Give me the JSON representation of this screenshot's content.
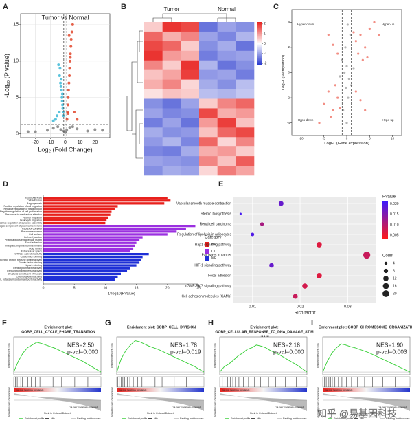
{
  "chart_data": [
    {
      "label": "A",
      "type": "scatter",
      "title": "Tumor vs Normal",
      "xlabel": "Log₂ (Fold Change)",
      "ylabel": "-Log₁₀ (P value)",
      "xlim": [
        -30,
        30
      ],
      "ylim": [
        -0.5,
        16.5
      ],
      "xticks": [
        -20,
        -10,
        0,
        10,
        20
      ],
      "yticks": [
        0,
        5,
        10,
        15
      ],
      "grid": true,
      "vlines": [
        -1,
        1
      ],
      "hlines": [
        1.3
      ],
      "series": [
        {
          "color": "#3db8d6",
          "x": [
            -4.5,
            -3.8,
            -3.2,
            -2.9,
            -2.5,
            -2.2,
            -2,
            -1.8,
            -1.6,
            -1.4,
            -1.2,
            -3.5,
            -2.7,
            -1.9,
            -4,
            -5.5,
            -6.5,
            -8
          ],
          "values": [
            9.5,
            8,
            7,
            6.5,
            6,
            5,
            4.5,
            4,
            3.5,
            3,
            2.5,
            9,
            7.5,
            5.5,
            3,
            2.5,
            2,
            1.8
          ]
        },
        {
          "color": "#e2452a",
          "x": [
            1.2,
            1.5,
            1.8,
            2,
            2.2,
            2.5,
            2.8,
            3,
            3.2,
            3.5,
            3.8,
            4,
            4.5,
            5,
            2.6,
            3.4,
            1.9,
            6,
            8
          ],
          "values": [
            2,
            3,
            4,
            5,
            6,
            7,
            8,
            9,
            10,
            11,
            12,
            13,
            14,
            15,
            13.5,
            10.5,
            2.8,
            3,
            2
          ]
        },
        {
          "color": "#808080",
          "x": [
            -20,
            -12,
            -8,
            -5,
            -3,
            -1,
            0,
            1,
            3,
            5,
            8,
            15,
            20,
            25,
            -25
          ],
          "values": [
            0.3,
            0.5,
            0.8,
            1,
            0.6,
            0.4,
            0.2,
            0.5,
            0.9,
            1,
            0.7,
            0.4,
            0.6,
            0.5,
            0.3
          ]
        }
      ]
    },
    {
      "label": "B",
      "type": "heatmap",
      "column_groups": [
        "Tumor",
        "Normal"
      ],
      "clim": [
        -2.2,
        2.2
      ],
      "cticks": [
        -2,
        -1,
        0,
        1,
        2
      ],
      "matrix": [
        [
          0.5,
          2,
          1.8,
          -1.5,
          -1,
          -1.2
        ],
        [
          1.5,
          0.8,
          1.2,
          -1,
          -1.3,
          -0.8
        ],
        [
          1.8,
          1.5,
          0.5,
          -1.2,
          -0.9,
          -1.5
        ],
        [
          2,
          1,
          0.8,
          -1.4,
          -1.1,
          -1
        ],
        [
          1.2,
          0.5,
          2,
          -0.8,
          -1.5,
          -1.2
        ],
        [
          0.6,
          0.9,
          1.9,
          -1.1,
          -1,
          -1.4
        ],
        [
          0.8,
          1.2,
          0.4,
          -0.9,
          -1.2,
          -0.7
        ],
        [
          0.3,
          0.6,
          0.5,
          -0.7,
          -0.8,
          -0.6
        ],
        [
          -1.2,
          -1.5,
          -1,
          0.5,
          1.2,
          1.5
        ],
        [
          -1,
          -1.3,
          -1.2,
          1.8,
          0.8,
          1
        ],
        [
          -1.4,
          -1,
          -1.5,
          1,
          1.9,
          0.6
        ],
        [
          -0.9,
          -1.2,
          -1.1,
          0.6,
          1.5,
          1.8
        ],
        [
          -1.1,
          -0.8,
          -1.3,
          1.5,
          0.4,
          1.2
        ],
        [
          -1.3,
          -1.4,
          -0.9,
          0.8,
          1,
          0.5
        ],
        [
          -1,
          -1.1,
          -1.2,
          1.2,
          0.6,
          1.6
        ],
        [
          -1.2,
          -0.9,
          -1,
          0.4,
          1.3,
          0.9
        ]
      ]
    },
    {
      "label": "C",
      "type": "scatter",
      "xlabel": "LogFC(Gene expression)",
      "ylabel": "LogFC(Methylation)",
      "quadrants": [
        "Hyper-down",
        "Hyper-up",
        "Hypo-down",
        "Hypo-up"
      ],
      "xlim": [
        -12,
        12
      ],
      "ylim": [
        -5,
        5
      ],
      "xticks": [
        -10,
        -5,
        0,
        5,
        10
      ],
      "yticks": [
        -4,
        -2,
        0,
        2,
        4
      ],
      "vlines": [
        -1,
        1
      ],
      "hlines": [
        -0.6,
        0.6
      ],
      "series": [
        {
          "color": "#f07a6e",
          "x": [
            2,
            3,
            4,
            5,
            6,
            2.5,
            3.5,
            4.5,
            1.5,
            7,
            -2,
            -3,
            -4,
            -5,
            -2.5,
            -3.5,
            -6,
            -1.5,
            2,
            3,
            -2,
            -3,
            4,
            -4
          ],
          "values": [
            2.5,
            3,
            2,
            3.5,
            4,
            1.5,
            1,
            1.2,
            3.2,
            3,
            -2,
            -3,
            -1.5,
            -2.5,
            -1,
            -3.5,
            -4,
            -2.8,
            -1.5,
            -2.2,
            1.5,
            2.2,
            -3,
            3
          ]
        },
        {
          "color": "#a8a8a8",
          "x": [
            -0.5,
            0,
            0.5,
            -1,
            1,
            -0.3,
            0.3,
            0.8,
            -0.8,
            0,
            1.5,
            -1.5,
            0.2,
            -0.2
          ],
          "values": [
            0,
            0.5,
            -0.5,
            1,
            -1,
            2,
            -2,
            3,
            -3,
            -4,
            0.3,
            -0.3,
            3.8,
            -1.2
          ]
        }
      ]
    },
    {
      "label": "D",
      "type": "bar",
      "xlabel": "-1*log10(PValue)",
      "legend_title": "Category",
      "xlim": [
        0,
        25
      ],
      "xticks": [
        0,
        5,
        10,
        15,
        20,
        25
      ],
      "categories": [
        "Vasculogenesis",
        "Cell adhesion",
        "Angiogenesis",
        "Positive regulation of cell migration",
        "Negative regulation of transcription",
        "Negative regulation of cell proliferation",
        "Response to mechanical stimulus",
        "Neuron migration",
        "Leukocyte migration",
        "Positive regulation of synapse assembly",
        "Integral component of plasma membrane",
        "Receptor complex",
        "Plasma membrane",
        "Cell surface",
        "Cell-cell junction",
        "Proteinaceous extracellular matrix",
        "Focal adhesion",
        "Integral component of membrane",
        "Golgi lumen",
        "Extracellular space",
        "GTPase activator activity",
        "Calcium ion binding",
        "Transmembrane receptor protein tyrosine kinase activity",
        "Growth factor binding",
        "Heparin binding",
        "Transcription factor activity",
        "Transcriptional repressor activity",
        "Structural constituent of muscle",
        "Chemorepellent activity",
        "Calcium, potassium:sodium antiporter activity"
      ],
      "series": [
        {
          "name": "BP",
          "color": "#e8201c",
          "values": [
            20,
            20.5,
            19.5,
            12,
            11.5,
            11,
            10.8,
            10.5,
            10.2,
            10,
            null,
            null,
            null,
            null,
            null,
            null,
            null,
            null,
            null,
            null,
            null,
            null,
            null,
            null,
            null,
            null,
            null,
            null,
            null,
            null
          ]
        },
        {
          "name": "CC",
          "color": "#9b30e0",
          "values": [
            null,
            null,
            null,
            null,
            null,
            null,
            null,
            null,
            null,
            null,
            24.5,
            23,
            21.5,
            20,
            16,
            15.5,
            15,
            14.8,
            14.5,
            14,
            null,
            null,
            null,
            null,
            null,
            null,
            null,
            null,
            null,
            null
          ]
        },
        {
          "name": "MF",
          "color": "#1e2fd6",
          "values": [
            null,
            null,
            null,
            null,
            null,
            null,
            null,
            null,
            null,
            null,
            null,
            null,
            null,
            null,
            null,
            null,
            null,
            null,
            null,
            null,
            17,
            16,
            15.8,
            15.5,
            15,
            14,
            13.5,
            12.5,
            12,
            11.5
          ]
        }
      ]
    },
    {
      "label": "E",
      "type": "dot",
      "xlabel": "Rich factor",
      "color_title": "PValue",
      "size_title": "Count",
      "xlim": [
        0.006,
        0.036
      ],
      "xticks": [
        0.01,
        0.02,
        0.03
      ],
      "categories": [
        "Vascular smooth muscle contraction",
        "Steroid biosynthesis",
        "Renal cell carcinoma",
        "Regulation of lipolysis in adipocytes",
        "Rap1 signaling pathway",
        "Pathways in cancer",
        "HIF-1 signaling pathway",
        "Focal adhesion",
        "cGMP-PKG signaling pathway",
        "Cell adhesion molecules (CAMs)"
      ],
      "values": [
        0.016,
        0.0075,
        0.012,
        0.01,
        0.024,
        0.034,
        0.014,
        0.024,
        0.021,
        0.019
      ],
      "pvalues": [
        0.016,
        0.019,
        0.01,
        0.018,
        0.005,
        0.007,
        0.016,
        0.005,
        0.006,
        0.007
      ],
      "counts": [
        10,
        2,
        6,
        5,
        13,
        22,
        9,
        13,
        12,
        10
      ],
      "clim": [
        0.0035,
        0.0215
      ],
      "cticks": [
        {
          "value": 0.02,
          "label": "0.020"
        },
        0.015,
        {
          "value": 0.01,
          "label": "0.010"
        },
        0.005
      ],
      "size_ticks": [
        4,
        8,
        12,
        16,
        20
      ]
    },
    {
      "label": "F",
      "type": "gsea",
      "title": [
        "Enrichment plot:",
        "GOBP_CELL_CYCLE_PHASE_TRANSITION"
      ],
      "nes": "NES=2.50",
      "pval": "p-val=0.000",
      "ylim": [
        -0.05,
        0.65
      ],
      "values": [
        0,
        0.2,
        0.35,
        0.45,
        0.5,
        0.55,
        0.53,
        0.5,
        0.47,
        0.44,
        0.4,
        0.36,
        0.32,
        0.28,
        0.24,
        0.2,
        0.15,
        0.1,
        0.05,
        0
      ],
      "hits": [
        2,
        4,
        6,
        8,
        10,
        13,
        16,
        20,
        25,
        30,
        38,
        45,
        55,
        70,
        85
      ]
    },
    {
      "label": "G",
      "type": "gsea",
      "title": [
        "Enrichment plot: GOBP_CELL_DIVISION"
      ],
      "nes": "NES=1.78",
      "pval": "p-val=0.019",
      "ylim": [
        -0.05,
        0.65
      ],
      "values": [
        0,
        0.25,
        0.4,
        0.5,
        0.58,
        0.56,
        0.52,
        0.48,
        0.45,
        0.42,
        0.38,
        0.34,
        0.3,
        0.26,
        0.22,
        0.18,
        0.14,
        0.1,
        0.05,
        0
      ],
      "hits": [
        1,
        3,
        5,
        7,
        9,
        12,
        15,
        19,
        24,
        29,
        36,
        44,
        52,
        66,
        80
      ]
    },
    {
      "label": "H",
      "type": "gsea",
      "title": [
        "Enrichment plot:",
        "GOBP_CELLULAR_RESPONSE_TO_DNA_DAMAGE_STIM",
        "ULUS"
      ],
      "nes": "NES=2.18",
      "pval": "p-val=0.000",
      "ylim": [
        -0.05,
        0.65
      ],
      "values": [
        0,
        0.1,
        0.15,
        0.22,
        0.3,
        0.35,
        0.42,
        0.45,
        0.5,
        0.48,
        0.45,
        0.4,
        0.36,
        0.32,
        0.27,
        0.22,
        0.17,
        0.12,
        0.06,
        0
      ],
      "hits": [
        3,
        6,
        9,
        12,
        15,
        18,
        22,
        27,
        33,
        40,
        47,
        56,
        64,
        75,
        88
      ]
    },
    {
      "label": "I",
      "type": "gsea",
      "title": [
        "Enrichment plot: GOBP_CHROMOSOME_ORGANIZATION"
      ],
      "nes": "NES=1.90",
      "pval": "p-val=0.003",
      "ylim": [
        -0.05,
        0.65
      ],
      "values": [
        0,
        0.2,
        0.35,
        0.45,
        0.52,
        0.5,
        0.47,
        0.45,
        0.42,
        0.39,
        0.36,
        0.32,
        0.28,
        0.24,
        0.2,
        0.16,
        0.12,
        0.08,
        0.04,
        0
      ],
      "hits": [
        2,
        4,
        7,
        9,
        11,
        14,
        18,
        22,
        27,
        33,
        40,
        48,
        57,
        69,
        83
      ]
    }
  ],
  "gsea_common": {
    "ylabel": "Enrichment score (ES)",
    "metric_label": "Ranked list metric (Signal2Noise)",
    "xlabel": "Rank in Ordered Dataset",
    "pos": "'na_pos' (positively correlated)",
    "neg": "'na_neg' (negatively correlated)",
    "legend": [
      "Enrichment profile",
      "Hits",
      "Ranking metric scores"
    ]
  },
  "watermark": "知乎 @易基因科技"
}
